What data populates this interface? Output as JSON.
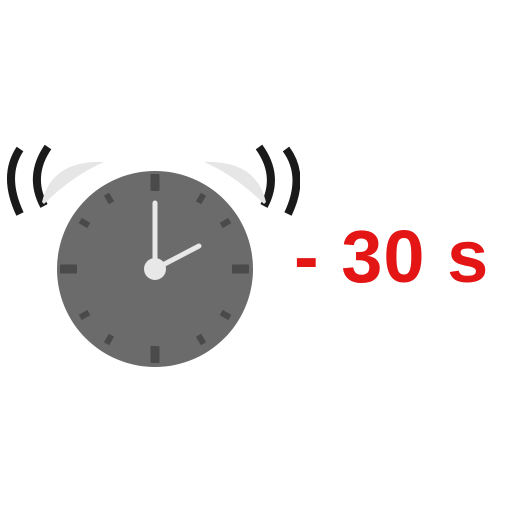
{
  "label": {
    "text": "- 30 s",
    "color": "#e31515"
  },
  "icon": {
    "name": "alarm-clock-icon",
    "face_color": "#6b6b6b",
    "bell_color": "#e6e6e6",
    "tick_color": "#4a4a4a",
    "hand_color": "#e8e8e8",
    "ring_wave_color": "#1a1a1a"
  }
}
